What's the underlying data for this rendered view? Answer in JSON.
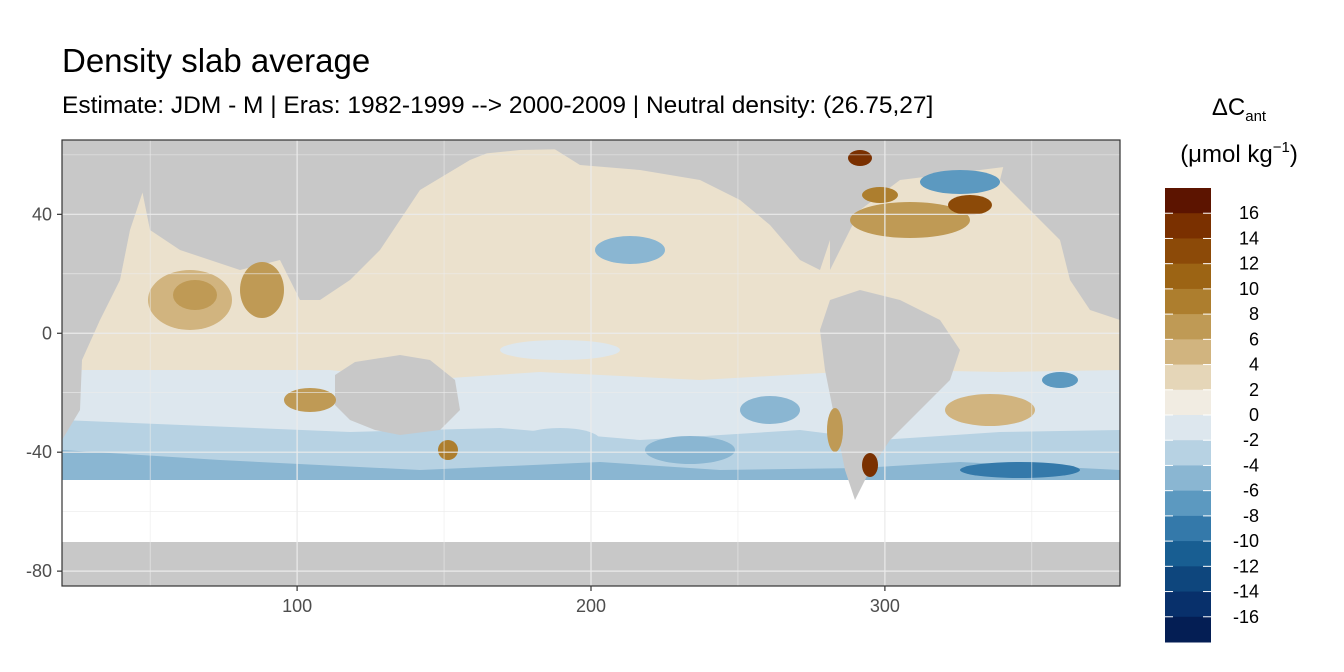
{
  "title": "Density slab average",
  "subtitle": "Estimate: JDM - M | Eras: 1982-1999 --> 2000-2009 | Neutral density: (26.75,27]",
  "legend": {
    "title_main": "ΔC",
    "title_sub": "ant",
    "unit_prefix": "(μmol kg",
    "unit_exp": "−1",
    "unit_suffix": ")",
    "labels": [
      "16",
      "14",
      "12",
      "10",
      "8",
      "6",
      "4",
      "2",
      "0",
      "-2",
      "-4",
      "-6",
      "-8",
      "-10",
      "-12",
      "-14",
      "-16"
    ],
    "colors": [
      "#5c1400",
      "#7a3000",
      "#8c4a08",
      "#9c6414",
      "#ad7e2e",
      "#bf9a55",
      "#d1b47f",
      "#e5d6b8",
      "#f1ece2",
      "#dde7ee",
      "#b7d2e3",
      "#8ab6d2",
      "#5c99c0",
      "#3479aa",
      "#185e92",
      "#0e467d",
      "#08306b",
      "#041e54"
    ],
    "levels": [
      18,
      16,
      14,
      12,
      10,
      8,
      6,
      4,
      2,
      0,
      -2,
      -4,
      -6,
      -8,
      -10,
      -12,
      -14,
      -16,
      -18
    ]
  },
  "chart_data": {
    "type": "heatmap",
    "title": "Density slab average",
    "subtitle": "Estimate: JDM - M | Eras: 1982-1999 --> 2000-2009 | Neutral density: (26.75,27]",
    "xlabel": "",
    "ylabel": "",
    "x_ticks": [
      100,
      200,
      300
    ],
    "y_ticks": [
      40,
      0,
      -40,
      -80
    ],
    "xlim": [
      20,
      380
    ],
    "ylim": [
      -85,
      65
    ],
    "fill_label": "ΔCant (μmol kg−1)",
    "fill_range": [
      -18,
      18
    ],
    "grid": true,
    "legend_position": "right",
    "land_color": "#c8c8c8",
    "nodata_color": "#ffffff",
    "regions": [
      {
        "lon": [
          20,
          380
        ],
        "lat": [
          -50,
          60
        ],
        "value": 0.5
      },
      {
        "lon": [
          20,
          380
        ],
        "lat": [
          -50,
          -28
        ],
        "value": -2.5
      },
      {
        "lon": [
          20,
          380
        ],
        "lat": [
          -50,
          -40
        ],
        "value": -4
      },
      {
        "lon": [
          40,
          100
        ],
        "lat": [
          -15,
          20
        ],
        "value": 3
      },
      {
        "lon": [
          58,
          82
        ],
        "lat": [
          -5,
          18
        ],
        "value": 6
      },
      {
        "lon": [
          80,
          95
        ],
        "lat": [
          5,
          22
        ],
        "value": 7
      },
      {
        "lon": [
          95,
          135
        ],
        "lat": [
          -25,
          -15
        ],
        "value": 5
      },
      {
        "lon": [
          140,
          200
        ],
        "lat": [
          -5,
          55
        ],
        "value": 2
      },
      {
        "lon": [
          160,
          230
        ],
        "lat": [
          -30,
          -15
        ],
        "value": -3
      },
      {
        "lon": [
          185,
          210
        ],
        "lat": [
          15,
          30
        ],
        "value": -5
      },
      {
        "lon": [
          250,
          310
        ],
        "lat": [
          -45,
          -25
        ],
        "value": -4
      },
      {
        "lon": [
          310,
          340
        ],
        "lat": [
          30,
          50
        ],
        "value": 6
      },
      {
        "lon": [
          325,
          345
        ],
        "lat": [
          45,
          55
        ],
        "value": 12
      },
      {
        "lon": [
          315,
          365
        ],
        "lat": [
          -35,
          -20
        ],
        "value": 4
      },
      {
        "lon": [
          300,
          340
        ],
        "lat": [
          -60,
          -50
        ],
        "value": -7
      },
      {
        "lon": [
          310,
          345
        ],
        "lat": [
          52,
          60
        ],
        "value": -6
      },
      {
        "lon": [
          290,
          310
        ],
        "lat": [
          55,
          62
        ],
        "value": 15
      },
      {
        "lon": [
          283,
          292
        ],
        "lat": [
          -38,
          -25
        ],
        "value": 5
      },
      {
        "lon": [
          245,
          265
        ],
        "lat": [
          -35,
          -25
        ],
        "value": -8
      }
    ]
  }
}
